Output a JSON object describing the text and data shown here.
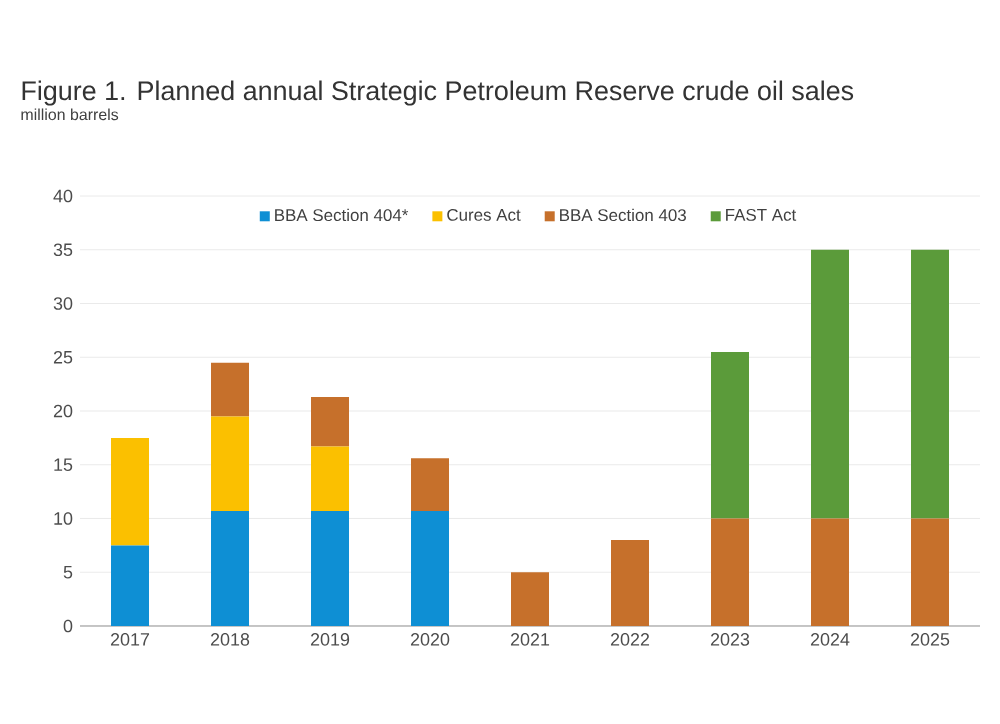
{
  "chart_data": {
    "type": "bar",
    "title": "Figure 1. Planned annual Strategic Petroleum Reserve crude oil sales",
    "ylabel": "million barrels",
    "categories": [
      "2017",
      "2018",
      "2019",
      "2020",
      "2021",
      "2022",
      "2023",
      "2024",
      "2025"
    ],
    "stacked": true,
    "ylim": [
      0,
      40
    ],
    "yticks": [
      0,
      5,
      10,
      15,
      20,
      25,
      30,
      35,
      40
    ],
    "grid": "y",
    "legend": "top",
    "series": [
      {
        "name": "BBA Section 404*",
        "color": "#0e8fd4",
        "values": [
          7.5,
          10.7,
          10.7,
          10.7,
          0,
          0,
          0,
          0,
          0
        ]
      },
      {
        "name": "Cures Act",
        "color": "#fbc000",
        "values": [
          10,
          8.8,
          6,
          0,
          0,
          0,
          0,
          0,
          0
        ]
      },
      {
        "name": "BBA Section 403",
        "color": "#c6702b",
        "values": [
          0,
          5,
          4.6,
          4.9,
          5,
          8,
          10,
          10,
          10
        ]
      },
      {
        "name": "FAST Act",
        "color": "#5b9b3a",
        "values": [
          0,
          0,
          0,
          0,
          0,
          0,
          15.5,
          25,
          25
        ]
      }
    ]
  }
}
